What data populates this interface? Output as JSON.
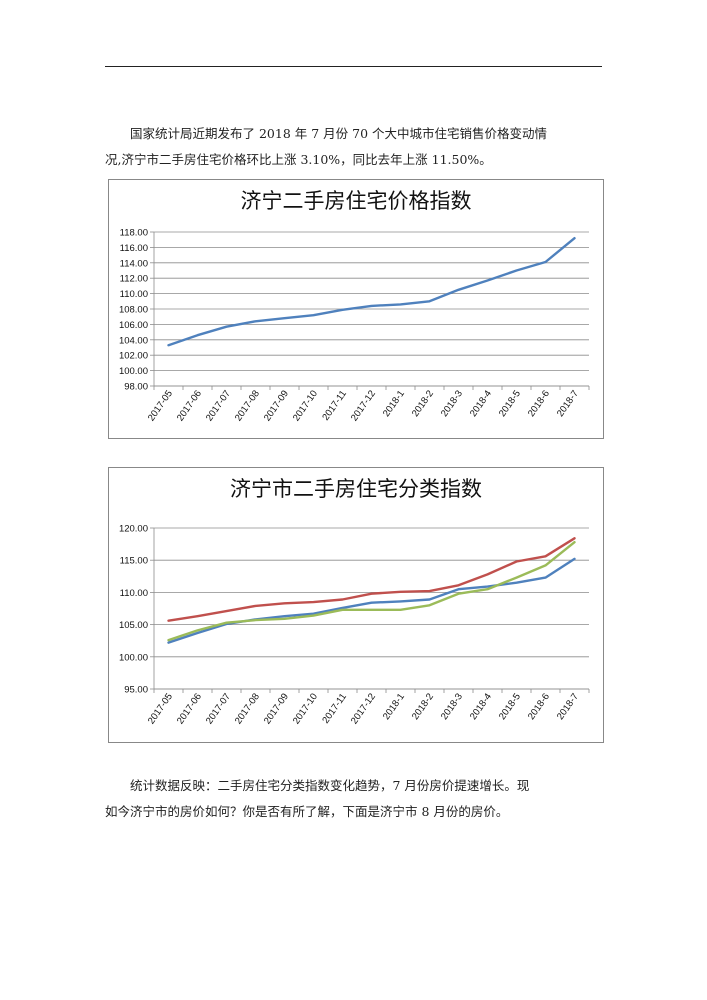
{
  "paragraph1": {
    "line1": "国家统计局近期发布了 2018 年 7 月份 70 个大中城市住宅销售价格变动情",
    "line2": "况,济宁市二手房住宅价格环比上涨 3.10%，同比去年上涨 11.50%。"
  },
  "chart_data": [
    {
      "type": "line",
      "title": "济宁二手房住宅价格指数",
      "categories": [
        "2017-05",
        "2017-06",
        "2017-07",
        "2017-08",
        "2017-09",
        "2017-10",
        "2017-11",
        "2017-12",
        "2018-1",
        "2018-2",
        "2018-3",
        "2018-4",
        "2018-5",
        "2018-6",
        "2018-7"
      ],
      "ylim": [
        98,
        118
      ],
      "ytick_step": 2,
      "ytick_decimals": 2,
      "grid": true,
      "series": [
        {
          "color": "#4f81bd",
          "values": [
            103.3,
            104.6,
            105.7,
            106.4,
            106.8,
            107.2,
            107.9,
            108.4,
            108.6,
            109.0,
            110.5,
            111.7,
            113.0,
            114.1,
            117.2
          ]
        }
      ]
    },
    {
      "type": "line",
      "title": "济宁市二手房住宅分类指数",
      "categories": [
        "2017-05",
        "2017-06",
        "2017-07",
        "2017-08",
        "2017-09",
        "2017-10",
        "2017-11",
        "2017-12",
        "2018-1",
        "2018-2",
        "2018-3",
        "2018-4",
        "2018-5",
        "2018-6",
        "2018-7"
      ],
      "ylim": [
        95,
        120
      ],
      "ytick_step": 5,
      "ytick_decimals": 2,
      "grid": true,
      "series": [
        {
          "color": "#4f81bd",
          "values": [
            102.2,
            103.7,
            105.1,
            105.8,
            106.3,
            106.7,
            107.6,
            108.4,
            108.6,
            108.9,
            110.5,
            110.9,
            111.5,
            112.3,
            115.2
          ]
        },
        {
          "color": "#c0504d",
          "values": [
            105.6,
            106.3,
            107.1,
            107.9,
            108.3,
            108.5,
            108.9,
            109.8,
            110.1,
            110.2,
            111.1,
            112.8,
            114.8,
            115.6,
            118.4
          ]
        },
        {
          "color": "#9bbb59",
          "values": [
            102.6,
            104.1,
            105.3,
            105.7,
            105.9,
            106.4,
            107.3,
            107.3,
            107.3,
            108.0,
            109.8,
            110.5,
            112.3,
            114.2,
            117.8
          ]
        }
      ]
    }
  ],
  "paragraph2": {
    "line1": "统计数据反映：二手房住宅分类指数变化趋势，7 月份房价提速增长。现",
    "line2": "如今济宁市的房价如何？你是否有所了解，下面是济宁市 8 月份的房价。"
  }
}
